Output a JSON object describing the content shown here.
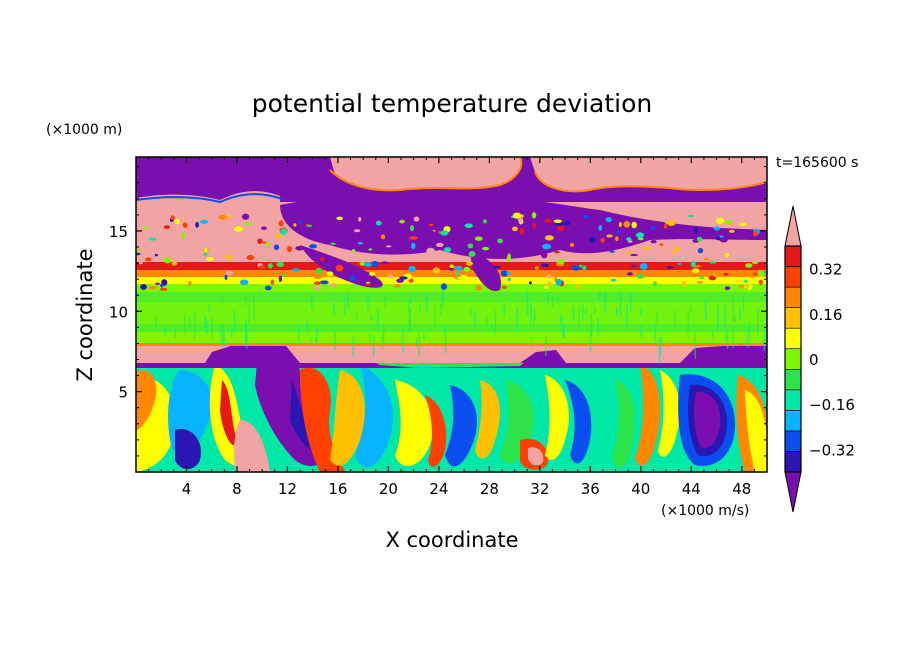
{
  "chart_data": {
    "type": "heatmap",
    "title": "potential temperature deviation",
    "time_label": "t=165600 s",
    "xlabel": "X coordinate",
    "ylabel": "Z coordinate",
    "x_unit": "(×1000 m/s)",
    "y_unit": "(×1000 m)",
    "xlim": [
      0,
      50
    ],
    "ylim": [
      0,
      19.6
    ],
    "x_ticks": [
      4,
      8,
      12,
      16,
      20,
      24,
      28,
      32,
      36,
      40,
      44,
      48
    ],
    "y_ticks": [
      5,
      10,
      15
    ],
    "colorbar": {
      "levels": [
        -0.4,
        -0.32,
        -0.24,
        -0.16,
        -0.08,
        0,
        0.08,
        0.16,
        0.24,
        0.32,
        0.4
      ],
      "tick_labels": [
        "0.32",
        "0.16",
        "0",
        "−0.16",
        "−0.32"
      ],
      "tick_values": [
        0.32,
        0.16,
        0,
        -0.16,
        -0.32
      ],
      "colors": [
        "#7a0eaf",
        "#2a16b3",
        "#0a4ef0",
        "#08b4ff",
        "#00e8a8",
        "#2de34a",
        "#80f500",
        "#ffff00",
        "#ffc000",
        "#ff8800",
        "#ff4000",
        "#e81818",
        "#f2a3a3"
      ],
      "extend": "both"
    },
    "bands": [
      {
        "z_range": [
          0,
          7.5
        ],
        "description_value": "mixed",
        "dominant": [
          -0.32,
          0.32
        ]
      },
      {
        "z_range": [
          7.5,
          8.2
        ],
        "dominant": 0.4
      },
      {
        "z_range": [
          8.2,
          12.2
        ],
        "dominant": 0.08
      },
      {
        "z_range": [
          12.2,
          13.2
        ],
        "dominant": 0.3
      },
      {
        "z_range": [
          13.2,
          19.6
        ],
        "dominant": [
          -0.4,
          0.4
        ]
      }
    ]
  }
}
